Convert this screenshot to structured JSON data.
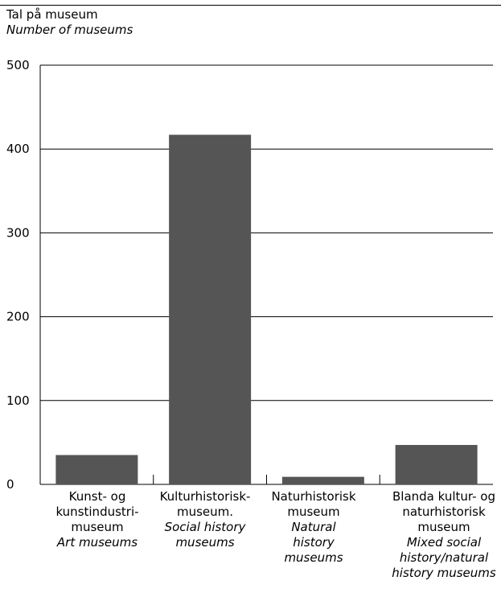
{
  "chart_data": {
    "type": "bar",
    "ylabel_no": "Tal på museum",
    "ylabel_en": "Number of museums",
    "ylim": [
      0,
      500
    ],
    "yticks": [
      0,
      100,
      200,
      300,
      400,
      500
    ],
    "grid": true,
    "bar_color": "#555555",
    "categories": [
      {
        "no": [
          "Kunst- og",
          "kunstindustri-",
          "museum"
        ],
        "en": [
          "Art museums"
        ]
      },
      {
        "no": [
          "Kulturhistorisk-",
          "museum."
        ],
        "en": [
          "Social history",
          "museums"
        ]
      },
      {
        "no": [
          "Naturhistorisk",
          "museum"
        ],
        "en": [
          "Natural",
          "history",
          "museums"
        ]
      },
      {
        "no": [
          "Blanda kultur- og",
          "naturhistorisk",
          "museum"
        ],
        "en": [
          "Mixed social",
          "history/natural",
          "history museums"
        ]
      }
    ],
    "values": [
      35,
      417,
      9,
      47
    ]
  }
}
